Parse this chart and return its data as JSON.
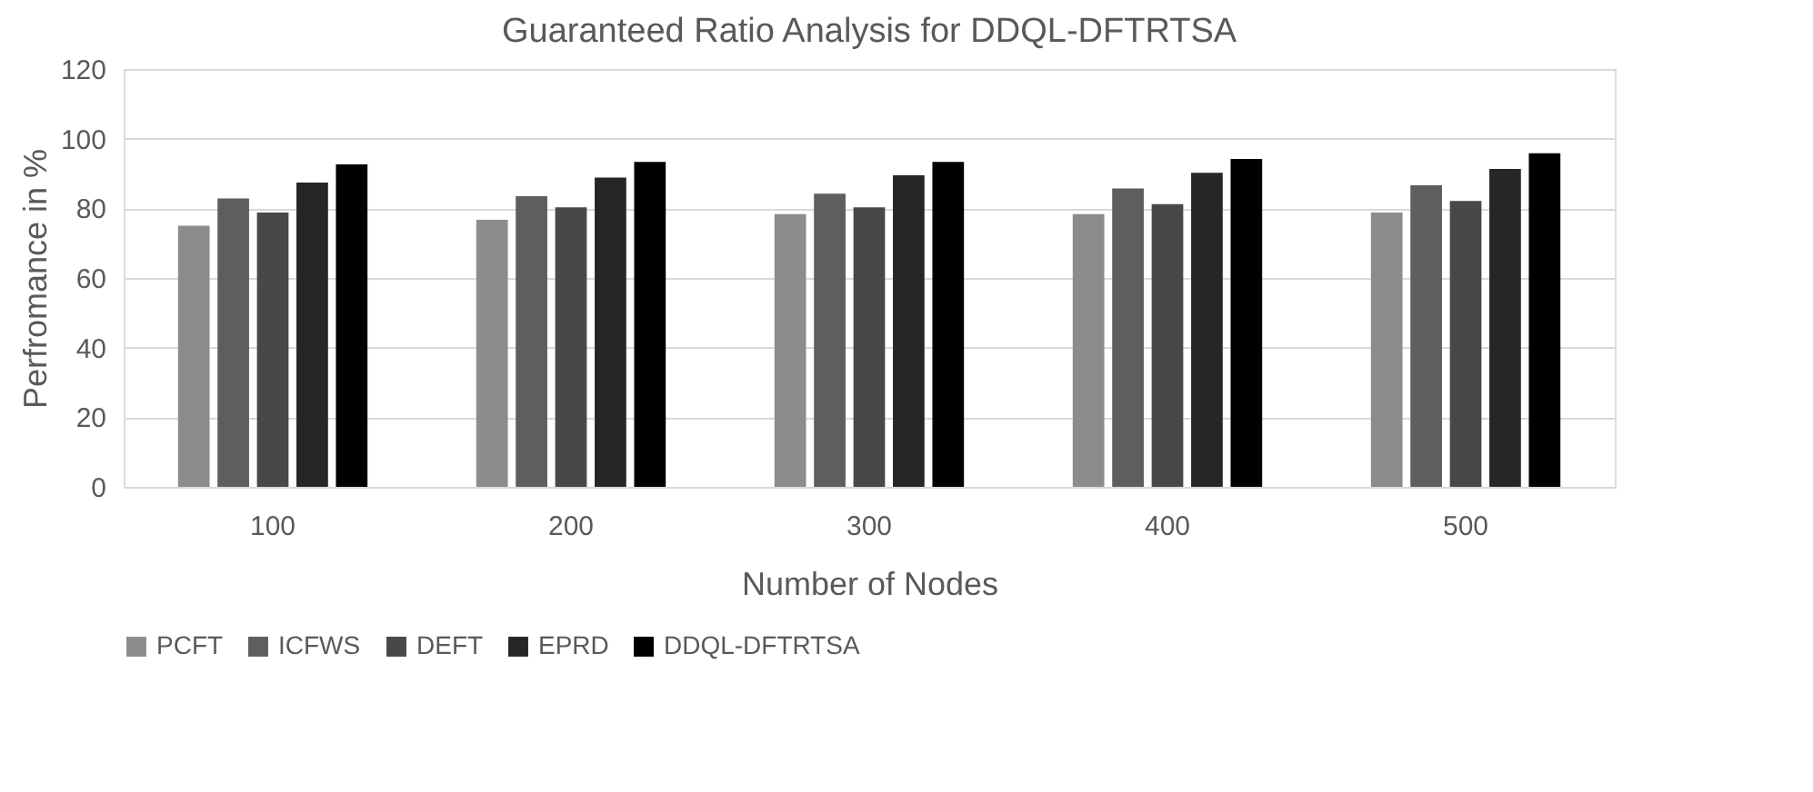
{
  "chart_data": {
    "type": "bar",
    "title": "Guaranteed Ratio Analysis for DDQL-DFTRTSA",
    "xlabel": "Number of Nodes",
    "ylabel": "Perfromance in %",
    "categories": [
      "100",
      "200",
      "300",
      "400",
      "500"
    ],
    "series": [
      {
        "name": "PCFT",
        "color": "#8c8c8c",
        "values": [
          75,
          76.7,
          78.3,
          78.3,
          78.8
        ]
      },
      {
        "name": "ICFWS",
        "color": "#5e5e5e",
        "values": [
          82.8,
          83.5,
          84.2,
          85.7,
          86.6
        ]
      },
      {
        "name": "DEFT",
        "color": "#484848",
        "values": [
          78.8,
          80.3,
          80.3,
          81.2,
          82.1
        ]
      },
      {
        "name": "EPRD",
        "color": "#262626",
        "values": [
          87.4,
          88.8,
          89.5,
          90.2,
          91.3
        ]
      },
      {
        "name": "DDQL-DFTRTSA",
        "color": "#000000",
        "values": [
          92.6,
          93.3,
          93.3,
          94.2,
          95.8
        ]
      }
    ],
    "ylim": [
      0,
      120
    ],
    "yticks": [
      0,
      20,
      40,
      60,
      80,
      100,
      120
    ],
    "grid": "y",
    "legend": "bottom"
  }
}
